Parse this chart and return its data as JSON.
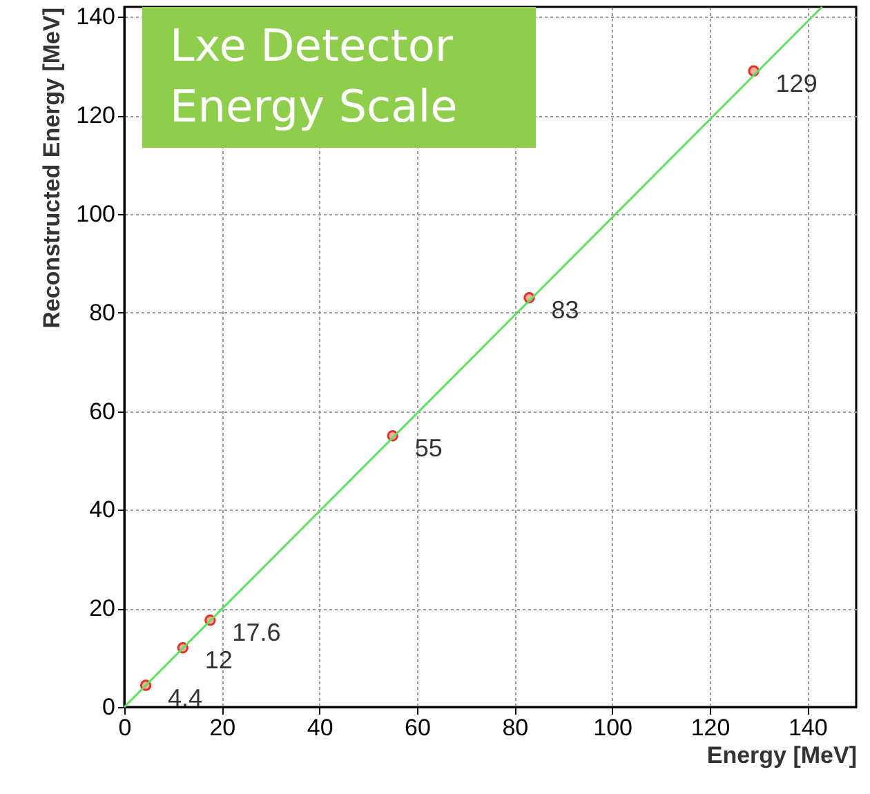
{
  "chart_data": {
    "type": "scatter",
    "title": "Lxe Detector Energy Scale",
    "xlabel": "Energy [MeV]",
    "ylabel": "Reconstructed Energy [MeV]",
    "xlim": [
      0,
      150
    ],
    "ylim": [
      0,
      142
    ],
    "xticks": [
      0,
      20,
      40,
      60,
      80,
      100,
      120,
      140
    ],
    "yticks": [
      0,
      20,
      40,
      60,
      80,
      100,
      120,
      140
    ],
    "grid": true,
    "series": [
      {
        "color": "#e8302a",
        "marker": "circle",
        "x": [
          4.4,
          12,
          17.6,
          55,
          83,
          129
        ],
        "values": [
          4.4,
          12,
          17.6,
          55,
          83,
          129
        ],
        "value_labels": [
          "4.4",
          "12",
          "17.6",
          "55",
          "83",
          "129"
        ]
      },
      {
        "type": "line",
        "color": "#5fe05f",
        "x": [
          0,
          143
        ],
        "values": [
          0,
          142
        ]
      }
    ]
  }
}
